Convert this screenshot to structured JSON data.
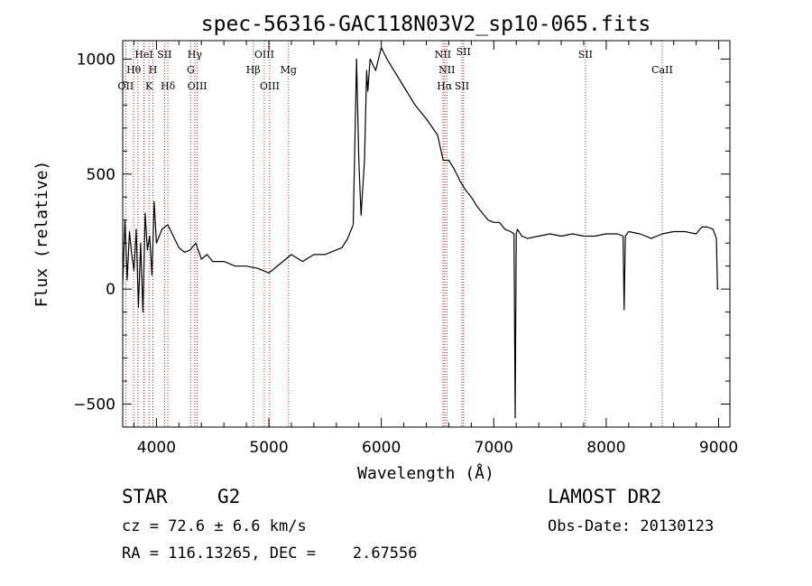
{
  "chart_data": {
    "type": "line",
    "title": "spec-56316-GAC118N03V2_sp10-065.fits",
    "xlabel": "Wavelength (Å)",
    "ylabel": "Flux (relative)",
    "xlim": [
      3700,
      9100
    ],
    "ylim": [
      -600,
      1080
    ],
    "xticks": [
      4000,
      5000,
      6000,
      7000,
      8000,
      9000
    ],
    "yticks": [
      -500,
      0,
      500,
      1000
    ],
    "grid": false,
    "line_color": "#000000",
    "marker_color": "#b22222",
    "series": [
      {
        "x": [
          3700,
          3720,
          3740,
          3760,
          3780,
          3800,
          3820,
          3840,
          3860,
          3880,
          3900,
          3920,
          3940,
          3960,
          3980,
          4000,
          4050,
          4100,
          4150,
          4200,
          4250,
          4300,
          4350,
          4400,
          4450,
          4500,
          4600,
          4700,
          4800,
          4900,
          5000,
          5100,
          5200,
          5300,
          5400,
          5500,
          5600,
          5650,
          5700,
          5750,
          5780,
          5800,
          5820,
          5850,
          5870,
          5880,
          5900,
          5950,
          6000,
          6050,
          6100,
          6200,
          6300,
          6400,
          6500,
          6550,
          6600,
          6650,
          6700,
          6750,
          6800,
          6850,
          6900,
          6950,
          7000,
          7050,
          7100,
          7150,
          7180,
          7190,
          7200,
          7210,
          7250,
          7300,
          7400,
          7500,
          7600,
          7700,
          7800,
          7900,
          8000,
          8100,
          8150,
          8160,
          8170,
          8200,
          8300,
          8400,
          8500,
          8600,
          8700,
          8800,
          8850,
          8900,
          8950,
          8980,
          8990,
          9000
        ],
        "y": [
          20,
          300,
          40,
          250,
          150,
          80,
          260,
          -80,
          200,
          -100,
          330,
          170,
          230,
          60,
          380,
          200,
          260,
          280,
          230,
          180,
          160,
          170,
          200,
          130,
          150,
          120,
          120,
          100,
          100,
          90,
          70,
          110,
          150,
          120,
          150,
          150,
          170,
          180,
          220,
          280,
          1000,
          560,
          320,
          560,
          950,
          860,
          1000,
          950,
          1050,
          1000,
          960,
          880,
          800,
          740,
          670,
          560,
          560,
          520,
          470,
          430,
          400,
          360,
          330,
          300,
          290,
          290,
          260,
          250,
          240,
          -560,
          240,
          260,
          230,
          220,
          230,
          240,
          230,
          240,
          230,
          230,
          240,
          240,
          230,
          -90,
          230,
          250,
          240,
          220,
          240,
          250,
          250,
          240,
          270,
          270,
          260,
          220,
          0,
          0
        ]
      }
    ],
    "lines": [
      {
        "label": "OII",
        "wavelength": 3727,
        "row": 3
      },
      {
        "label": "Hθ",
        "wavelength": 3798,
        "row": 2
      },
      {
        "label": "HeI",
        "wavelength": 3889,
        "row": 1
      },
      {
        "label": "K",
        "wavelength": 3934,
        "row": 3
      },
      {
        "label": "H",
        "wavelength": 3969,
        "row": 2
      },
      {
        "label": "SII",
        "wavelength": 4072,
        "row": 1
      },
      {
        "label": "Hδ",
        "wavelength": 4102,
        "row": 3
      },
      {
        "label": "Hγ",
        "wavelength": 4341,
        "row": 1
      },
      {
        "label": "G",
        "wavelength": 4305,
        "row": 2
      },
      {
        "label": "OIII",
        "wavelength": 4363,
        "row": 3
      },
      {
        "label": "Hβ",
        "wavelength": 4861,
        "row": 2
      },
      {
        "label": "OIII",
        "wavelength": 4959,
        "row": 1
      },
      {
        "label": "OIII",
        "wavelength": 5007,
        "row": 3
      },
      {
        "label": "Mg",
        "wavelength": 5175,
        "row": 2
      },
      {
        "label": "NII",
        "wavelength": 6548,
        "row": 1
      },
      {
        "label": "NII",
        "wavelength": 6583,
        "row": 2
      },
      {
        "label": "Hα",
        "wavelength": 6563,
        "row": 3
      },
      {
        "label": "SII",
        "wavelength": 6717,
        "row": 3
      },
      {
        "label": "SII",
        "wavelength": 6731,
        "row": 0
      },
      {
        "label": "SII",
        "wavelength": 7815,
        "row": 1
      },
      {
        "label": "CaII",
        "wavelength": 8498,
        "row": 2
      },
      {
        "label": "",
        "wavelength": 3835,
        "row": 0
      },
      {
        "label": "",
        "wavelength": 3890,
        "row": 0
      }
    ]
  },
  "footer": {
    "class_label": "STAR",
    "subclass_label": "G2",
    "cz_text": "cz = 72.6 ± 6.6 km/s",
    "coords_text": "RA = 116.13265, DEC =    2.67556",
    "survey_text": "LAMOST DR2",
    "obs_date_text": "Obs-Date: 20130123"
  }
}
